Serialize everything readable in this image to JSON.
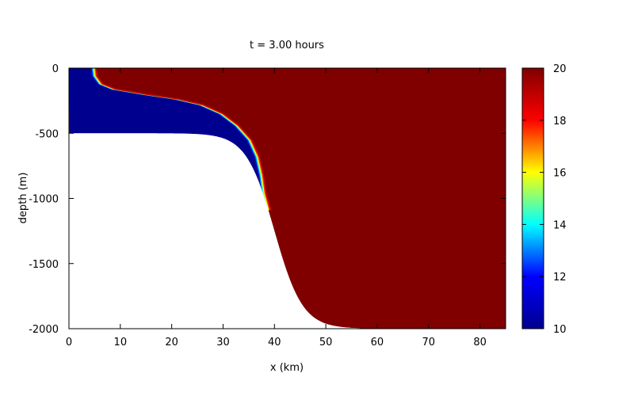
{
  "chart_data": {
    "type": "heatmap",
    "title": "t = 3.00 hours",
    "xlabel": "x (km)",
    "ylabel": "depth (m)",
    "xlim": [
      0,
      85
    ],
    "ylim": [
      -2000,
      0
    ],
    "x_ticks": [
      0,
      10,
      20,
      30,
      40,
      50,
      60,
      70,
      80
    ],
    "y_ticks": [
      0,
      -500,
      -1000,
      -1500,
      -2000
    ],
    "colorbar": {
      "range": [
        10,
        20
      ],
      "ticks": [
        10,
        12,
        14,
        16,
        18,
        20
      ],
      "colormap": [
        "#00008f",
        "#0000ff",
        "#00ffff",
        "#ffff00",
        "#ff0000",
        "#800000"
      ]
    },
    "bathymetry": {
      "shelf_depth": -500,
      "deep_depth": -2000,
      "slope_center_km": 40,
      "slope_width_km": 5.5
    },
    "cold_layer": {
      "value": 10,
      "warm_value": 20,
      "front_profile": [
        {
          "x": 4.2,
          "depth": 0
        },
        {
          "x": 4.4,
          "depth": -60
        },
        {
          "x": 5.5,
          "depth": -120
        },
        {
          "x": 8,
          "depth": -160
        },
        {
          "x": 14,
          "depth": -200
        },
        {
          "x": 20,
          "depth": -235
        },
        {
          "x": 25,
          "depth": -280
        },
        {
          "x": 29,
          "depth": -350
        },
        {
          "x": 32,
          "depth": -440
        },
        {
          "x": 34.5,
          "depth": -550
        },
        {
          "x": 36,
          "depth": -680
        },
        {
          "x": 36.8,
          "depth": -820
        },
        {
          "x": 37.3,
          "depth": -960
        },
        {
          "x": 38.2,
          "depth": -1090
        }
      ]
    }
  }
}
